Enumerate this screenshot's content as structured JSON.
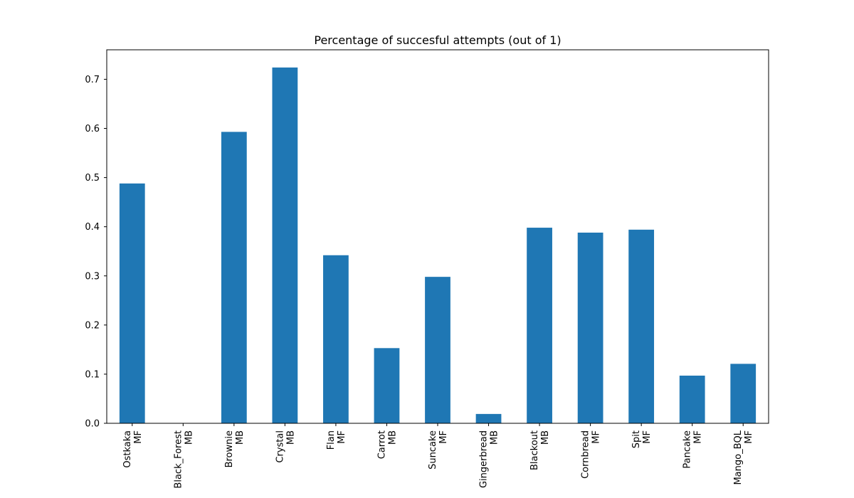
{
  "chart_data": {
    "type": "bar",
    "title": "Percentage of succesful attempts (out of 1)",
    "xlabel": "",
    "ylabel": "",
    "categories": [
      [
        "Ostkaka",
        "MF"
      ],
      [
        "Black_Forest",
        "MB"
      ],
      [
        "Brownie",
        "MB"
      ],
      [
        "Crystal",
        "MB"
      ],
      [
        "Flan",
        "MF"
      ],
      [
        "Carrot",
        "MB"
      ],
      [
        "Suncake",
        "MF"
      ],
      [
        "Gingerbread",
        "MB"
      ],
      [
        "Blackout",
        "MB"
      ],
      [
        "Cornbread",
        "MF"
      ],
      [
        "Spit",
        "MF"
      ],
      [
        "Pancake",
        "MF"
      ],
      [
        "Mango_BQL",
        "MF"
      ]
    ],
    "values": [
      0.488,
      0.0,
      0.593,
      0.724,
      0.342,
      0.153,
      0.298,
      0.019,
      0.398,
      0.388,
      0.394,
      0.097,
      0.121
    ],
    "ylim": [
      0,
      0.76
    ],
    "yticks": [
      0.0,
      0.1,
      0.2,
      0.3,
      0.4,
      0.5,
      0.6,
      0.7
    ],
    "grid": false,
    "legend": "none",
    "colors": {
      "bar": "#1f77b4",
      "axis": "#000000",
      "background": "#ffffff"
    }
  }
}
